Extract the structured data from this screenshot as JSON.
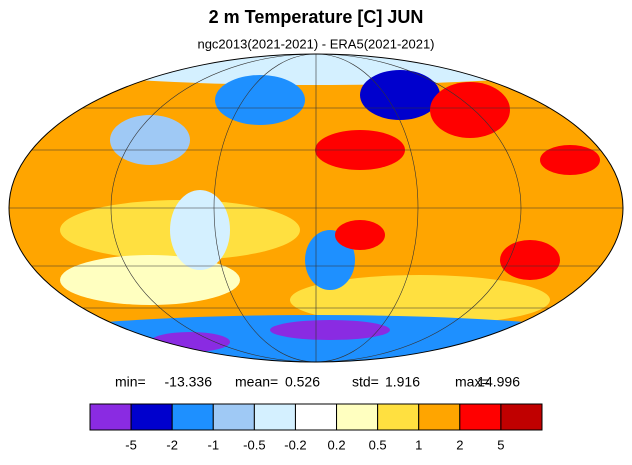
{
  "title": "2 m Temperature [C] JUN",
  "subtitle": "ngc2013(2021-2021) - ERA5(2021-2021)",
  "stats": [
    {
      "label": "min=",
      "value": -13.336
    },
    {
      "label": "mean=",
      "value": 0.526
    },
    {
      "label": "std=",
      "value": 1.916
    },
    {
      "label": "max=",
      "value": 14.996
    }
  ],
  "colorbar": {
    "colors": [
      "#8a2be2",
      "#0000cd",
      "#1e90ff",
      "#9fc9f5",
      "#d4f0ff",
      "#ffffff",
      "#ffffc0",
      "#ffe040",
      "#ffa500",
      "#ff0000",
      "#c00000"
    ],
    "levels": [
      -5,
      -2,
      -1,
      -0.5,
      -0.2,
      0.2,
      0.5,
      1,
      2,
      5
    ]
  }
}
